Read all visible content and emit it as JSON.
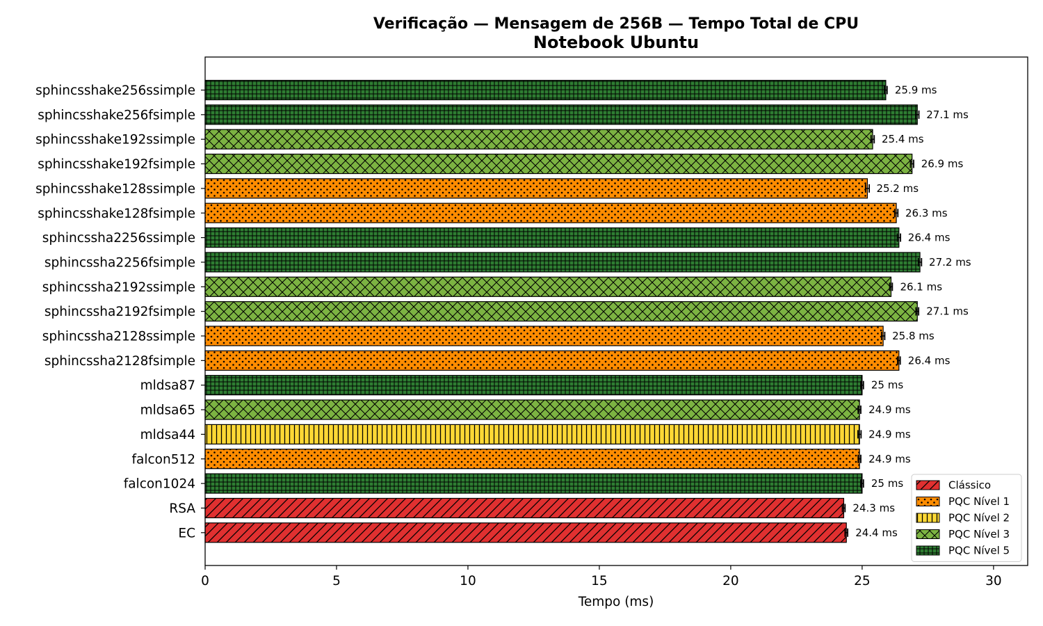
{
  "chart_data": {
    "type": "bar",
    "orientation": "horizontal",
    "title": "Verificação — Mensagem de 256B — Tempo Total de CPU",
    "subtitle": "Notebook Ubuntu",
    "xlabel": "Tempo (ms)",
    "ylabel": "",
    "xlim": [
      0,
      31.3
    ],
    "xticks": [
      0,
      5,
      10,
      15,
      20,
      25,
      30
    ],
    "grid": false,
    "legend_position": "lower-right",
    "categories": [
      "sphincsshake256ssimple",
      "sphincsshake256fsimple",
      "sphincsshake192ssimple",
      "sphincsshake192fsimple",
      "sphincsshake128ssimple",
      "sphincsshake128fsimple",
      "sphincssha2256ssimple",
      "sphincssha2256fsimple",
      "sphincssha2192ssimple",
      "sphincssha2192fsimple",
      "sphincssha2128ssimple",
      "sphincssha2128fsimple",
      "mldsa87",
      "mldsa65",
      "mldsa44",
      "falcon512",
      "falcon1024",
      "RSA",
      "EC"
    ],
    "values": [
      25.9,
      27.1,
      25.4,
      26.9,
      25.2,
      26.3,
      26.4,
      27.2,
      26.1,
      27.1,
      25.8,
      26.4,
      25.0,
      24.9,
      24.9,
      24.9,
      25.0,
      24.3,
      24.4
    ],
    "value_labels": [
      "25.9 ms",
      "27.1 ms",
      "25.4 ms",
      "26.9 ms",
      "25.2 ms",
      "26.3 ms",
      "26.4 ms",
      "27.2 ms",
      "26.1 ms",
      "27.1 ms",
      "25.8 ms",
      "26.4 ms",
      "25 ms",
      "24.9 ms",
      "24.9 ms",
      "24.9 ms",
      "25 ms",
      "24.3 ms",
      "24.4 ms"
    ],
    "errors": [
      0.05,
      0.06,
      0.06,
      0.06,
      0.07,
      0.06,
      0.06,
      0.06,
      0.05,
      0.05,
      0.06,
      0.05,
      0.05,
      0.05,
      0.06,
      0.05,
      0.05,
      0.05,
      0.05
    ],
    "groups": [
      4,
      4,
      3,
      3,
      1,
      1,
      4,
      4,
      3,
      3,
      1,
      1,
      4,
      3,
      2,
      1,
      4,
      0,
      0
    ],
    "legend": [
      {
        "label": "Clássico",
        "color": "#e03030",
        "pattern": "diagonal"
      },
      {
        "label": "PQC Nível 1",
        "color": "#ff8c00",
        "pattern": "dots"
      },
      {
        "label": "PQC Nível 2",
        "color": "#fdd835",
        "pattern": "vertical"
      },
      {
        "label": "PQC Nível 3",
        "color": "#7cb342",
        "pattern": "crosshatch"
      },
      {
        "label": "PQC Nível 5",
        "color": "#2e7d32",
        "pattern": "grid"
      }
    ]
  }
}
